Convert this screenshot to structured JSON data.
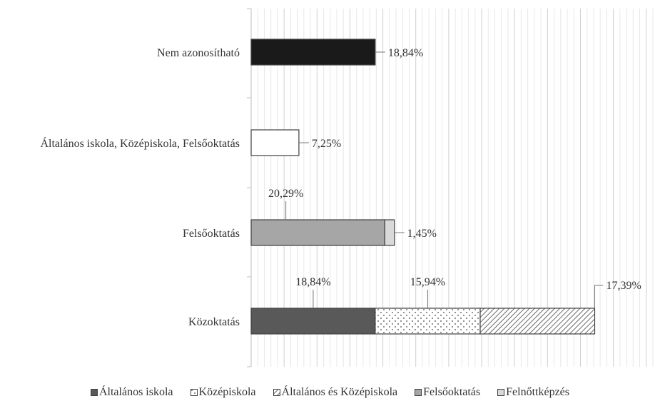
{
  "chart_data": {
    "type": "bar",
    "orientation": "horizontal",
    "stacked": true,
    "categories": [
      "Nem azonosítható",
      "Általános iskola, Középiskola, Felsőoktatás",
      "Felsőoktatás",
      "Közoktatás"
    ],
    "series": [
      {
        "name": "Általános iskola",
        "color": "#595959",
        "pattern": "solid",
        "segments": [
          {
            "category": "Közoktatás",
            "value": 18.84,
            "label": "18,84%"
          }
        ]
      },
      {
        "name": "Középiskola",
        "color": "#ffffff",
        "pattern": "dots",
        "segments": [
          {
            "category": "Közoktatás",
            "value": 15.94,
            "label": "15,94%"
          }
        ]
      },
      {
        "name": "Általános és Középiskola",
        "color": "#ffffff",
        "pattern": "hatch",
        "segments": [
          {
            "category": "Közoktatás",
            "value": 17.39,
            "label": "17,39%"
          }
        ]
      },
      {
        "name": "Felsőoktatás",
        "color": "#a6a6a6",
        "pattern": "solid",
        "segments": [
          {
            "category": "Felsőoktatás",
            "value": 20.29,
            "label": "20,29%"
          }
        ]
      },
      {
        "name": "Felnőttképzés",
        "color": "#d9d9d9",
        "pattern": "solid",
        "segments": [
          {
            "category": "Felsőoktatás",
            "value": 1.45,
            "label": "1,45%"
          }
        ]
      }
    ],
    "extra_bars": [
      {
        "category": "Nem azonosítható",
        "value": 18.84,
        "label": "18,84%",
        "color": "#1a1a1a"
      },
      {
        "category": "Általános iskola, Középiskola, Felsőoktatás",
        "value": 7.25,
        "label": "7,25%",
        "color": "#ffffff"
      }
    ],
    "xlim": [
      0,
      61
    ],
    "grid": "vertical",
    "legend_position": "bottom",
    "title": "",
    "xlabel": "",
    "ylabel": ""
  }
}
